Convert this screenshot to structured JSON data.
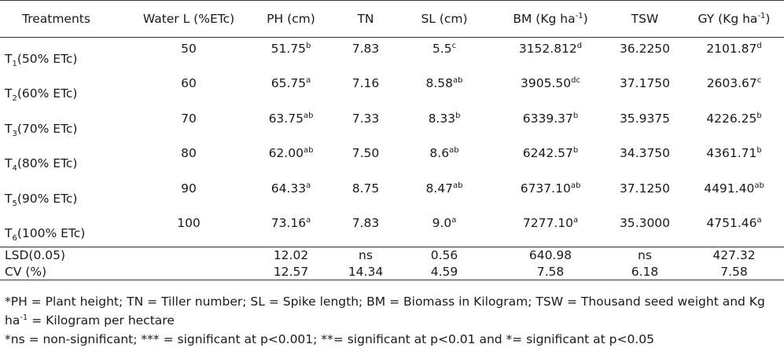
{
  "headers": {
    "treatments": "Treatments",
    "water": "Water L (%ETc)",
    "ph": "PH (cm)",
    "tn": "TN",
    "sl": "SL (cm)",
    "bm": "BM (Kg ha",
    "bm_sup": "-1",
    "bm_close": ")",
    "tsw": "TSW",
    "gy": "GY (Kg ha",
    "gy_sup": "-1",
    "gy_close": ")"
  },
  "rows": [
    {
      "t": "T",
      "t_sub": "1",
      "t_rest": "(50% ETc)",
      "water": "50",
      "ph": "51.75",
      "ph_sup": "b",
      "tn": "7.83",
      "sl": "5.5",
      "sl_sup": "c",
      "bm": "3152.812",
      "bm_sup": "d",
      "tsw": "36.2250",
      "gy": "2101.87",
      "gy_sup": "d"
    },
    {
      "t": "T",
      "t_sub": "2",
      "t_rest": "(60% ETc)",
      "water": "60",
      "ph": "65.75",
      "ph_sup": "a",
      "tn": "7.16",
      "sl": "8.58",
      "sl_sup": "ab",
      "bm": "3905.50",
      "bm_sup": "dc",
      "tsw": "37.1750",
      "gy": "2603.67",
      "gy_sup": "c"
    },
    {
      "t": "T",
      "t_sub": "3",
      "t_rest": "(70% ETc)",
      "water": "70",
      "ph": "63.75",
      "ph_sup": "ab",
      "tn": "7.33",
      "sl": "8.33",
      "sl_sup": "b",
      "bm": "6339.37",
      "bm_sup": "b",
      "tsw": "35.9375",
      "gy": "4226.25",
      "gy_sup": "b"
    },
    {
      "t": "T",
      "t_sub": "4",
      "t_rest": "(80% ETc)",
      "water": "80",
      "ph": "62.00",
      "ph_sup": "ab",
      "tn": "7.50",
      "sl": "8.6",
      "sl_sup": "ab",
      "bm": "6242.57",
      "bm_sup": "b",
      "tsw": "34.3750",
      "gy": "4361.71",
      "gy_sup": "b"
    },
    {
      "t": "T",
      "t_sub": "5",
      "t_rest": "(90% ETc)",
      "water": "90",
      "ph": "64.33",
      "ph_sup": "a",
      "tn": "8.75",
      "sl": "8.47",
      "sl_sup": "ab",
      "bm": "6737.10",
      "bm_sup": "ab",
      "tsw": "37.1250",
      "gy": "4491.40",
      "gy_sup": "ab"
    },
    {
      "t": "T",
      "t_sub": "6",
      "t_rest": "(100% ETc)",
      "water": "100",
      "ph": "73.16",
      "ph_sup": "a",
      "tn": "7.83",
      "sl": "9.0",
      "sl_sup": "a",
      "bm": "7277.10",
      "bm_sup": "a",
      "tsw": "35.3000",
      "gy": "4751.46",
      "gy_sup": "a"
    }
  ],
  "lsd": {
    "label": "LSD(0.05)",
    "ph": "12.02",
    "tn": "ns",
    "sl": "0.56",
    "bm": "640.98",
    "tsw": "ns",
    "gy": "427.32"
  },
  "cv": {
    "label": "CV (%)",
    "ph": "12.57",
    "tn": "14.34",
    "sl": "4.59",
    "bm": "7.58",
    "tsw": "6.18",
    "gy": "7.58"
  },
  "notes": {
    "line1_a": "*PH = Plant height; TN = Tiller number; SL = Spike length; BM = Biomass in Kilogram; TSW = Thousand seed weight and Kg ha",
    "line1_sup": "-1",
    "line1_b": " = Kilogram per hectare",
    "line2": "*ns = non-significant; *** = significant at p<0.001; **= significant at p<0.01 and *= significant at p<0.05"
  }
}
